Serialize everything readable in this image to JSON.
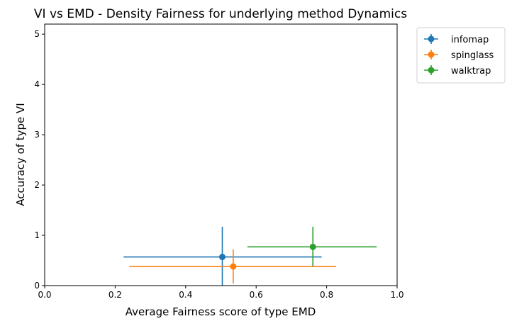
{
  "chart_data": {
    "type": "scatter",
    "title": "VI vs EMD - Density Fairness for underlying method Dynamics",
    "xlabel": "Average Fairness score of type EMD",
    "ylabel": "Accuracy of type VI",
    "xlim": [
      0.0,
      1.0
    ],
    "ylim": [
      0,
      5.2
    ],
    "x_ticks": [
      "0.0",
      "0.2",
      "0.4",
      "0.6",
      "0.8",
      "1.0"
    ],
    "y_ticks": [
      "0",
      "1",
      "2",
      "3",
      "4",
      "5"
    ],
    "grid": false,
    "legend_position": "outside top-right",
    "series": [
      {
        "name": "infomap",
        "color": "#1f77b4",
        "x": 0.504,
        "y": 0.57,
        "xerr_low": 0.224,
        "xerr_high": 0.786,
        "yerr_low": 0.0,
        "yerr_high": 1.17
      },
      {
        "name": "spinglass",
        "color": "#ff7f0e",
        "x": 0.535,
        "y": 0.38,
        "xerr_low": 0.24,
        "xerr_high": 0.827,
        "yerr_low": 0.04,
        "yerr_high": 0.72
      },
      {
        "name": "walktrap",
        "color": "#2ca02c",
        "x": 0.761,
        "y": 0.77,
        "xerr_low": 0.575,
        "xerr_high": 0.942,
        "yerr_low": 0.38,
        "yerr_high": 1.17
      }
    ]
  }
}
